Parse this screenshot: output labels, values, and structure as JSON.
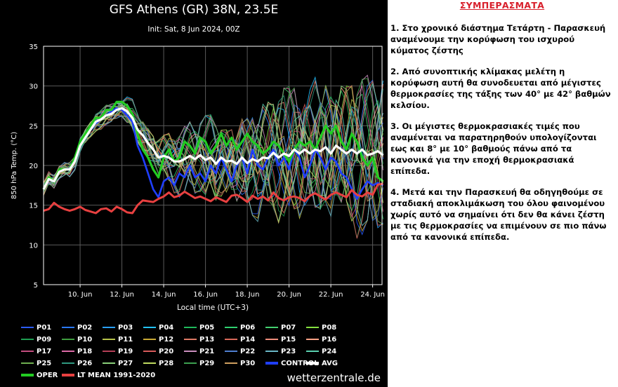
{
  "chart": {
    "title": "GFS Athens (GR) 38N, 23.5E",
    "subtitle": "Init: Sat, 8 Jun 2024, 00Z",
    "ylabel": "850 hPa Temp. (°C)",
    "xlabel": "Local time (UTC+3)",
    "watermark": "wetterzentrale.de",
    "colors": {
      "background": "#000000",
      "oper": "#22cc22",
      "avg": "#ffffff",
      "control": "#1f3fff",
      "lt_mean": "#e84040"
    }
  },
  "chart_data": {
    "type": "line",
    "ylim": [
      5,
      35
    ],
    "yticks": [
      5,
      10,
      15,
      20,
      25,
      30,
      35
    ],
    "xlim": [
      0,
      16.2
    ],
    "xticks": [
      {
        "x": 1.75,
        "label": "10. Jun"
      },
      {
        "x": 3.75,
        "label": "12. Jun"
      },
      {
        "x": 5.75,
        "label": "14. Jun"
      },
      {
        "x": 7.75,
        "label": "16. Jun"
      },
      {
        "x": 9.75,
        "label": "18. Jun"
      },
      {
        "x": 11.75,
        "label": "20. Jun"
      },
      {
        "x": 13.75,
        "label": "22. Jun"
      },
      {
        "x": 15.75,
        "label": "24. Jun"
      }
    ],
    "x_step_days": 0.25,
    "grid": true,
    "legend_position": "bottom",
    "series": [
      {
        "name": "OPER",
        "color": "#22cc22",
        "values": [
          17,
          18.5,
          18,
          19.5,
          19.5,
          19.5,
          21,
          23,
          24,
          25,
          26,
          26,
          27,
          27,
          28,
          28,
          27.5,
          26.5,
          24,
          22,
          21,
          19.5,
          18.5,
          21,
          22,
          20.5,
          21,
          23,
          22.5,
          21.5,
          23.5,
          23,
          21.5,
          22.5,
          24,
          22.5,
          23.5,
          22,
          23,
          24,
          23,
          22.5,
          21.5,
          22,
          23,
          22.5,
          21.5,
          20.5,
          22,
          23,
          22.5,
          23,
          22,
          23.5,
          25,
          24,
          25,
          23,
          22,
          24,
          23,
          21,
          20,
          21,
          18.5,
          18
        ]
      },
      {
        "name": "AVG",
        "color": "#ffffff",
        "values": [
          17,
          18.3,
          18,
          19.2,
          19.5,
          19.5,
          20.5,
          22.5,
          23.5,
          24.5,
          25.5,
          25.8,
          26.3,
          26.5,
          27,
          27.2,
          26.8,
          26,
          24.5,
          23.8,
          22.8,
          22,
          21,
          21.2,
          21,
          20.5,
          20.5,
          20.8,
          21.2,
          20.8,
          21.3,
          20.7,
          21,
          20.2,
          21,
          20.5,
          20.6,
          20.2,
          21,
          20.3,
          20.8,
          20.5,
          21,
          20.9,
          21.6,
          21,
          21.5,
          21.2,
          22,
          21.5,
          22,
          21.5,
          22,
          21.8,
          22.3,
          21.5,
          22.5,
          22,
          21.5,
          22,
          21.5,
          22,
          21.3,
          21.5,
          21.8,
          21.3
        ]
      },
      {
        "name": "CONTROL",
        "color": "#1f3fff",
        "values": [
          17,
          18.2,
          18.1,
          19.2,
          19.5,
          19.6,
          20.8,
          22.6,
          23.4,
          24.7,
          25.3,
          25.8,
          26.3,
          26.8,
          27.2,
          27,
          26.3,
          25.5,
          22.5,
          21,
          19,
          17,
          16,
          18,
          18.5,
          17.5,
          19,
          18.5,
          20,
          18.5,
          19,
          18,
          20,
          19,
          21,
          19.5,
          18,
          20,
          21,
          19,
          22,
          20,
          19.5,
          21,
          22,
          20,
          21,
          19.5,
          22,
          21,
          18.5,
          20,
          22,
          21,
          19.5,
          21,
          20.5,
          19,
          18.5,
          17,
          15.8,
          17,
          18,
          17.5,
          17.8,
          17.5
        ]
      },
      {
        "name": "LT MEAN 1991-2020",
        "color": "#e84040",
        "values": [
          14.3,
          14.5,
          15.3,
          14.8,
          14.5,
          14.3,
          14.5,
          14.8,
          14.4,
          14.2,
          14,
          14.5,
          14.6,
          14.2,
          14.8,
          14.5,
          14.1,
          14,
          15,
          15.6,
          15.5,
          15.4,
          15.8,
          16.1,
          16.6,
          16,
          16.2,
          16.7,
          16.3,
          15.9,
          16.1,
          15.8,
          15.5,
          16,
          15.7,
          15.4,
          16.2,
          16.3,
          15.9,
          15.4,
          16.2,
          15.8,
          16.1,
          15.6,
          16.6,
          15.9,
          15.6,
          16,
          16.1,
          15.9,
          15.5,
          16.2,
          16.5,
          16.1,
          15.7,
          16.3,
          16.6,
          16.3,
          16,
          16.9,
          16.3,
          16.1,
          16.6,
          16.3,
          17.6,
          17.7
        ]
      }
    ],
    "ensemble_members": [
      "P01",
      "P02",
      "P03",
      "P04",
      "P05",
      "P06",
      "P07",
      "P08",
      "P09",
      "P10",
      "P11",
      "P12",
      "P13",
      "P14",
      "P15",
      "P16",
      "P17",
      "P18",
      "P19",
      "P20",
      "P21",
      "P22",
      "P23",
      "P24",
      "P25",
      "P26",
      "P27",
      "P28",
      "P29",
      "P30"
    ],
    "member_colors": [
      "#2c5cff",
      "#2a78ff",
      "#2aa0ff",
      "#23c2ff",
      "#1fb85b",
      "#2fd070",
      "#44d070",
      "#85e040",
      "#1e9e52",
      "#3f9d3f",
      "#b7c34a",
      "#c9a935",
      "#e07a66",
      "#d9695a",
      "#f08e7c",
      "#ffa286",
      "#c34d7e",
      "#dc6aa6",
      "#b43f56",
      "#d75a5a",
      "#cb8fbf",
      "#4f7fd0",
      "#6ab8c7",
      "#5ad0b0",
      "#6fb050",
      "#2f9a80",
      "#8ad07a",
      "#c0dc60",
      "#3ca050",
      "#d0a060"
    ]
  },
  "legend": {
    "items": [
      "P01",
      "P02",
      "P03",
      "P04",
      "P05",
      "P06",
      "P07",
      "P08",
      "P09",
      "P10",
      "P11",
      "P12",
      "P13",
      "P14",
      "P15",
      "P16",
      "P17",
      "P18",
      "P19",
      "P20",
      "P21",
      "P22",
      "P23",
      "P24",
      "P25",
      "P26",
      "P27",
      "P28",
      "P29",
      "P30",
      "CONTROL",
      "AVG",
      "OPER",
      "LT MEAN 1991-2020"
    ]
  },
  "notes": {
    "heading": "ΣΥΜΠΕΡΑΣΜΑΤΑ",
    "paragraphs": [
      "1. Στο χρονικό διάστημα Τετάρτη - Παρασκευή αναμένουμε την κορύφωση του ισχυρού κύματος ζέστης",
      "2. Από συνοπτικής κλίμακας μελέτη η κορύφωση αυτή θα συνοδευεται από μέγιστες θερμοκρασίες της τάξης των 40° με 42° βαθμών κελσίου.",
      "3. Οι μέγιστες θερμοκρασιακές τιμές που αναμένεται να παρατηρηθούν υπολογίζονται εως και 8° με 10° βαθμούς πάνω από τα κανονικά για την εποχή θερμοκρασιακά επίπεδα.",
      "4. Μετά και την Παρασκευή θα οδηγηθούμε σε σταδιακή αποκλιμάκωση του όλου φαινομένου χωρίς αυτό να σημαίνει ότι δεν θα κάνει ζέστη με τις θερμοκρασίες να επιμένουν σε πιο πάνω από τα κανονικά επίπεδα."
    ]
  }
}
